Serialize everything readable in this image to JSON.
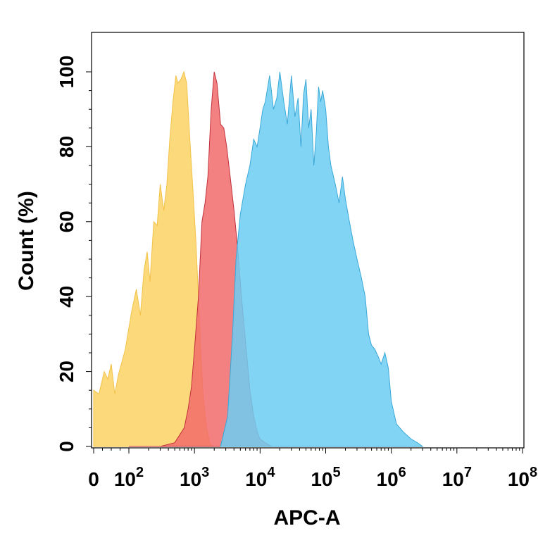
{
  "chart_data": {
    "type": "area",
    "title": "",
    "xlabel": "APC-A",
    "ylabel": "Count  (%)",
    "x_scale": "log",
    "ylim": [
      0,
      100
    ],
    "grid": false,
    "legend": "none",
    "y_ticks": [
      {
        "value": 0,
        "label": "0"
      },
      {
        "value": 20,
        "label": "20"
      },
      {
        "value": 40,
        "label": "40"
      },
      {
        "value": 60,
        "label": "60"
      },
      {
        "value": 80,
        "label": "80"
      },
      {
        "value": 100,
        "label": "100"
      }
    ],
    "x_ticks": [
      {
        "value": 0,
        "label": "0",
        "exp": ""
      },
      {
        "value": 100,
        "label": "10",
        "exp": "2"
      },
      {
        "value": 1000,
        "label": "10",
        "exp": "3"
      },
      {
        "value": 10000,
        "label": "10",
        "exp": "4"
      },
      {
        "value": 100000,
        "label": "10",
        "exp": "5"
      },
      {
        "value": 1000000,
        "label": "10",
        "exp": "6"
      },
      {
        "value": 10000000,
        "label": "10",
        "exp": "7"
      },
      {
        "value": 100000000,
        "label": "10",
        "exp": "8"
      }
    ],
    "series": [
      {
        "color": "#fcd56b",
        "stroke": "#f2c24a",
        "opacity": 0.9,
        "points": [
          [
            0,
            15
          ],
          [
            15,
            14
          ],
          [
            30,
            20
          ],
          [
            40,
            18
          ],
          [
            50,
            22
          ],
          [
            60,
            14
          ],
          [
            70,
            19
          ],
          [
            90,
            26
          ],
          [
            110,
            36
          ],
          [
            130,
            42
          ],
          [
            150,
            35
          ],
          [
            170,
            47
          ],
          [
            190,
            52
          ],
          [
            210,
            44
          ],
          [
            240,
            60
          ],
          [
            270,
            59
          ],
          [
            300,
            70
          ],
          [
            340,
            63
          ],
          [
            380,
            70
          ],
          [
            420,
            82
          ],
          [
            470,
            92
          ],
          [
            520,
            99
          ],
          [
            560,
            97
          ],
          [
            620,
            98
          ],
          [
            690,
            100
          ],
          [
            760,
            97
          ],
          [
            850,
            82
          ],
          [
            950,
            68
          ],
          [
            1050,
            55
          ],
          [
            1150,
            40
          ],
          [
            1250,
            25
          ],
          [
            1350,
            14
          ],
          [
            1500,
            6
          ],
          [
            1700,
            1
          ],
          [
            1900,
            0
          ]
        ]
      },
      {
        "color": "#f26b6b",
        "stroke": "#c0303a",
        "opacity": 0.85,
        "points": [
          [
            100,
            0
          ],
          [
            300,
            0
          ],
          [
            500,
            1
          ],
          [
            700,
            5
          ],
          [
            800,
            10
          ],
          [
            900,
            16
          ],
          [
            1000,
            26
          ],
          [
            1150,
            40
          ],
          [
            1300,
            60
          ],
          [
            1450,
            65
          ],
          [
            1600,
            72
          ],
          [
            1800,
            90
          ],
          [
            2000,
            100
          ],
          [
            2200,
            97
          ],
          [
            2500,
            86
          ],
          [
            2800,
            85
          ],
          [
            3100,
            80
          ],
          [
            3500,
            72
          ],
          [
            4000,
            63
          ],
          [
            4600,
            52
          ],
          [
            5200,
            40
          ],
          [
            6000,
            28
          ],
          [
            7000,
            15
          ],
          [
            8000,
            8
          ],
          [
            9000,
            4
          ],
          [
            10000,
            2
          ],
          [
            12000,
            1
          ],
          [
            15000,
            0
          ]
        ]
      },
      {
        "color": "#6ccdf2",
        "stroke": "#3aa8d8",
        "opacity": 0.85,
        "points": [
          [
            2500,
            0
          ],
          [
            3200,
            8
          ],
          [
            3800,
            30
          ],
          [
            4300,
            50
          ],
          [
            5000,
            62
          ],
          [
            6000,
            70
          ],
          [
            7000,
            75
          ],
          [
            8000,
            82
          ],
          [
            9000,
            80
          ],
          [
            10000,
            85
          ],
          [
            11000,
            90
          ],
          [
            12000,
            92
          ],
          [
            14000,
            99
          ],
          [
            16000,
            90
          ],
          [
            18000,
            93
          ],
          [
            20000,
            100
          ],
          [
            23000,
            92
          ],
          [
            26000,
            86
          ],
          [
            30000,
            99
          ],
          [
            34000,
            88
          ],
          [
            38000,
            93
          ],
          [
            42000,
            80
          ],
          [
            46000,
            94
          ],
          [
            50000,
            98
          ],
          [
            55000,
            85
          ],
          [
            60000,
            90
          ],
          [
            66000,
            75
          ],
          [
            72000,
            84
          ],
          [
            78000,
            96
          ],
          [
            84000,
            92
          ],
          [
            90000,
            95
          ],
          [
            100000,
            90
          ],
          [
            110000,
            80
          ],
          [
            120000,
            75
          ],
          [
            140000,
            70
          ],
          [
            160000,
            65
          ],
          [
            180000,
            72
          ],
          [
            200000,
            66
          ],
          [
            230000,
            60
          ],
          [
            260000,
            55
          ],
          [
            300000,
            50
          ],
          [
            350000,
            45
          ],
          [
            400000,
            40
          ],
          [
            450000,
            30
          ],
          [
            500000,
            27
          ],
          [
            560000,
            26
          ],
          [
            630000,
            24
          ],
          [
            700000,
            22
          ],
          [
            800000,
            25
          ],
          [
            900000,
            21
          ],
          [
            1000000,
            12
          ],
          [
            1200000,
            6
          ],
          [
            1500000,
            4
          ],
          [
            2000000,
            2
          ],
          [
            2500000,
            1
          ],
          [
            3000000,
            0
          ]
        ]
      }
    ],
    "overlap_colors": {
      "yellow_red": "#f39a3e",
      "red_blue": "#b9566a",
      "all": "#c7804a"
    }
  }
}
